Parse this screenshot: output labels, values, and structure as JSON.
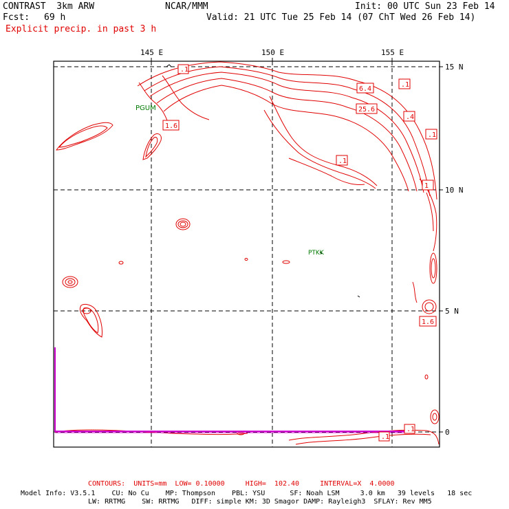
{
  "header": {
    "model": "CONTRAST  3km ARW",
    "center": "NCAR/MMM",
    "init": "Init: 00 UTC Sun 23 Feb 14",
    "fcst_label": "Fcst:",
    "fcst_value": "69 h",
    "valid": "Valid: 21 UTC Tue 25 Feb 14 (07 ChT Wed 26 Feb 14)",
    "field_title": "Explicit precip. in past 3 h"
  },
  "map": {
    "lon_labels": [
      "145 E",
      "150 E",
      "155 E"
    ],
    "lat_labels": [
      "15 N",
      "10 N",
      "5 N",
      "0"
    ],
    "stations": [
      {
        "id": "PGUM"
      },
      {
        "id": "PTKK"
      }
    ],
    "contour_labels": [
      ".1",
      "6.4",
      ".1",
      "25.6",
      "1.6",
      ".4",
      ".1",
      ".1",
      "1",
      "1.6",
      ".1",
      ".1"
    ],
    "contour_color": "#e00000",
    "boundary_color": "#d000d0"
  },
  "footer": {
    "contours": "CONTOURS:  UNITS=mm  LOW= 0.10000     HIGH=  102.40     INTERVAL=X  4.0000",
    "model_info_1": "Model Info: V3.5.1    CU: No Cu    MP: Thompson    PBL: YSU      SF: Noah LSM     3.0 km   39 levels   18 sec",
    "model_info_2": "LW: RRTMG    SW: RRTMG   DIFF: simple KM: 3D Smagor DAMP: Rayleigh3  SFLAY: Rev MM5"
  }
}
